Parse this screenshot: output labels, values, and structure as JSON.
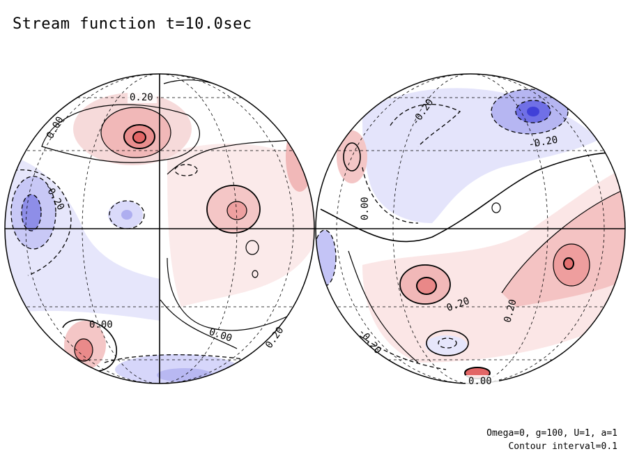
{
  "title": "Stream function t=10.0sec",
  "footer": {
    "line1": "Omega=0, g=100, U=1, a=1",
    "line2": "Contour interval=0.1"
  },
  "colors": {
    "positive": "#e06060",
    "negative": "#5050e0",
    "line": "#000000"
  },
  "contour_labels": {
    "left": [
      "0.20",
      "0.00",
      "-0.20",
      "0.00",
      "0.00",
      "0.20"
    ],
    "right": [
      "-0.20",
      "-0.20",
      "0.00",
      "0.20",
      "0.20",
      "-0.20",
      "0.00"
    ]
  }
}
